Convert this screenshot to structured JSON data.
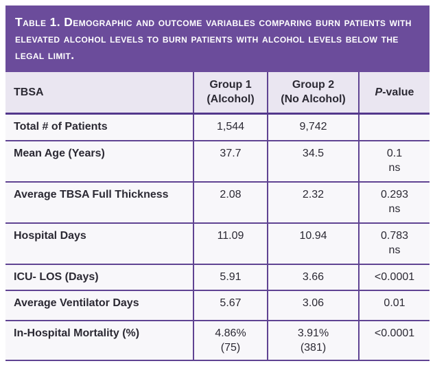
{
  "colors": {
    "title_bg": "#6b4c9b",
    "title_text": "#ffffff",
    "header_bg": "#eae6f1",
    "row_bg": "#f8f7fa",
    "border": "#5f4392",
    "body_text": "#2b2933"
  },
  "table": {
    "title": "Table 1. Demographic and outcome variables comparing burn patients with elevated alcohol levels to burn patients with alcohol levels below the legal limit.",
    "header": {
      "col1": "TBSA",
      "col2_line1": "Group 1",
      "col2_line2": "(Alcohol)",
      "col3_line1": "Group 2",
      "col3_line2": "(No Alcohol)",
      "col4_italic": "P",
      "col4_rest": "-value"
    },
    "rows": [
      {
        "label": "Total # of Patients",
        "group1": "1,544",
        "group2": "9,742",
        "pvalue": ""
      },
      {
        "label": "Mean Age (Years)",
        "group1": "37.7",
        "group2": "34.5",
        "pvalue": "0.1",
        "pvalue_note": "ns"
      },
      {
        "label": "Average TBSA Full Thickness",
        "group1": "2.08",
        "group2": "2.32",
        "pvalue": "0.293",
        "pvalue_note": "ns"
      },
      {
        "label": "Hospital Days",
        "group1": "11.09",
        "group2": "10.94",
        "pvalue": "0.783",
        "pvalue_note": "ns"
      },
      {
        "label": "ICU- LOS (Days)",
        "group1": "5.91",
        "group2": "3.66",
        "pvalue": "<0.0001"
      },
      {
        "label": "Average Ventilator Days",
        "group1": "5.67",
        "group2": "3.06",
        "pvalue": "0.01"
      },
      {
        "label": "In-Hospital Mortality (%)",
        "group1": "4.86%",
        "group1_sub": "(75)",
        "group2": "3.91%",
        "group2_sub": "(381)",
        "pvalue": "<0.0001"
      }
    ]
  }
}
